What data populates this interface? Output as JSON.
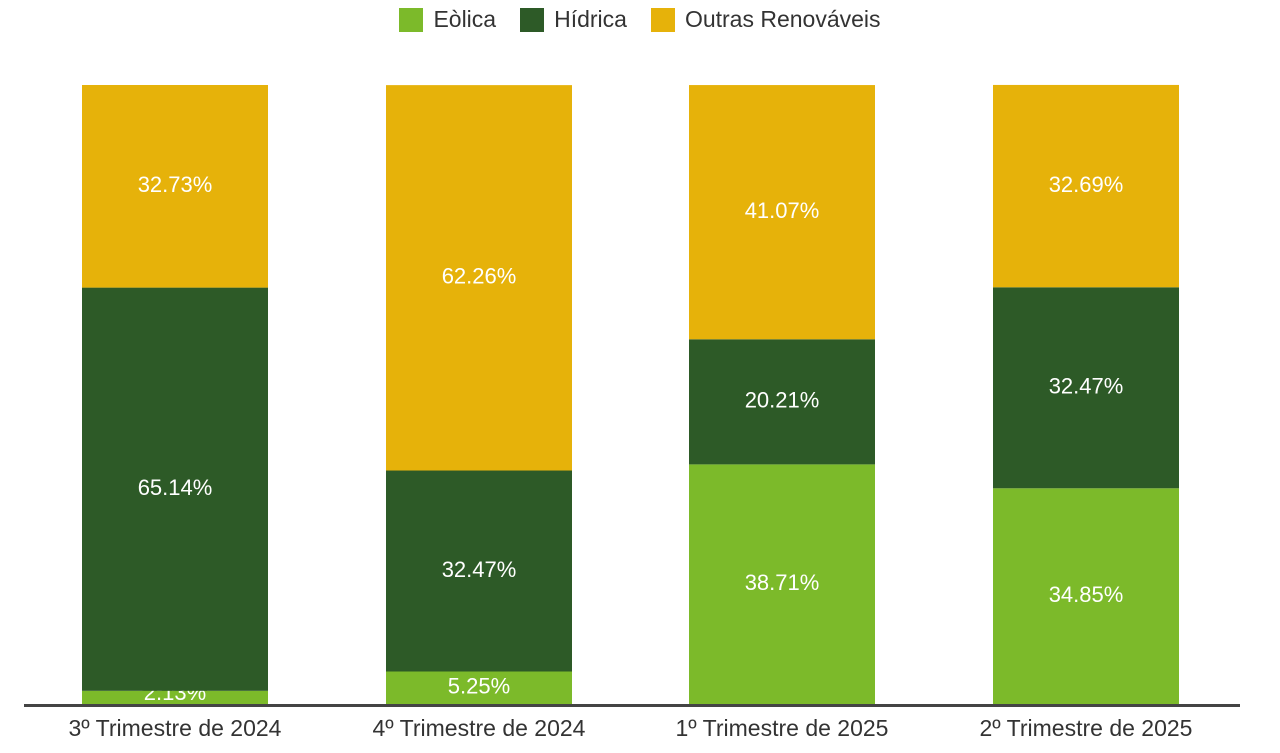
{
  "chart_data": {
    "type": "bar",
    "stacked": true,
    "normalized": true,
    "categories": [
      "3º Trimestre de 2024",
      "4º Trimestre de 2024",
      "1º Trimestre de 2025",
      "2º Trimestre de 2025"
    ],
    "series": [
      {
        "name": "Eòlica",
        "color": "#7cba2a",
        "values": [
          2.13,
          5.25,
          38.71,
          34.85
        ],
        "labels": [
          "2.13%",
          "5.25%",
          "38.71%",
          "34.85%"
        ]
      },
      {
        "name": "Hídrica",
        "color": "#2d5a27",
        "values": [
          65.14,
          32.47,
          20.21,
          32.47
        ],
        "labels": [
          "65.14%",
          "32.47%",
          "20.21%",
          "32.47%"
        ]
      },
      {
        "name": "Outras Renováveis",
        "color": "#e6b20a",
        "values": [
          32.73,
          62.26,
          41.07,
          32.69
        ],
        "labels": [
          "32.73%",
          "62.26%",
          "41.07%",
          "32.69%"
        ]
      }
    ],
    "ylim": [
      0,
      100
    ],
    "legend_position": "top-center",
    "grid": false
  },
  "legend": {
    "items": [
      {
        "label": "Eòlica",
        "color": "#7cba2a"
      },
      {
        "label": "Hídrica",
        "color": "#2d5a27"
      },
      {
        "label": "Outras Renováveis",
        "color": "#e6b20a"
      }
    ]
  }
}
